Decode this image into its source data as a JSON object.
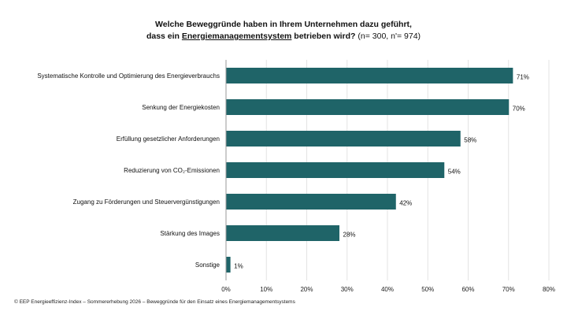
{
  "title": {
    "line1": "Welche Beweggründe haben in Ihrem Unternehmen dazu geführt,",
    "line2_pre": "dass ein ",
    "line2_term": "Energiemanagementsystem",
    "line2_post": " betrieben wird?",
    "sample": " (n= 300, n'= 974)"
  },
  "footer": "© EEP Energieeffizienz-Index – Sommererhebung 2026 – Beweggründe für den Einsatz eines Energiemanagementsystems",
  "colors": {
    "bar": "#1f6468",
    "grid": "#e3e3e3",
    "axis": "#9a9a9a"
  },
  "chart_data": {
    "type": "bar",
    "orientation": "horizontal",
    "categories": [
      "Systematische Kontrolle und Optimierung des Energieverbrauchs",
      "Senkung der Energiekosten",
      "Erfüllung gesetzlicher Anforderungen",
      "Reduzierung von CO₂-Emissionen",
      "Zugang zu Förderungen und Steuervergünstigungen",
      "Stärkung des Images",
      "Sonstige"
    ],
    "values": [
      71,
      70,
      58,
      54,
      42,
      28,
      1
    ],
    "value_labels": [
      "71%",
      "70%",
      "58%",
      "54%",
      "42%",
      "28%",
      "1%"
    ],
    "xlim": [
      0,
      80
    ],
    "xticks": [
      "0%",
      "10%",
      "20%",
      "30%",
      "40%",
      "50%",
      "60%",
      "70%",
      "80%"
    ],
    "grid": true
  }
}
